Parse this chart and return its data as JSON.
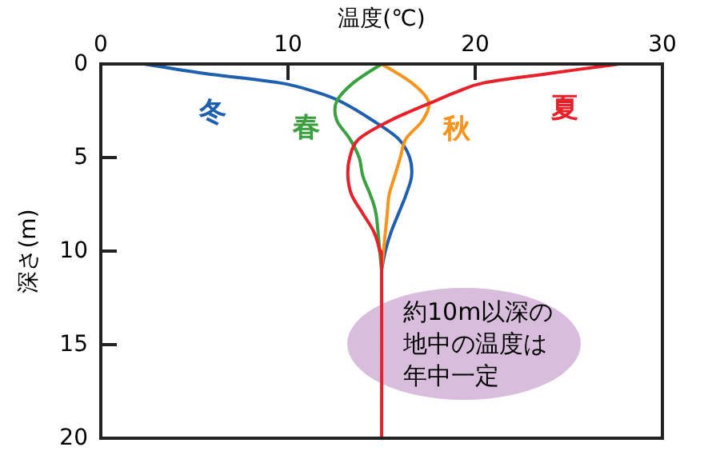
{
  "chart_data": {
    "type": "line",
    "xlabel": "温度(℃)",
    "ylabel": "深さ(m)",
    "xlim": [
      0,
      30
    ],
    "xticks": [
      0,
      10,
      20,
      30
    ],
    "ylim": [
      20,
      0
    ],
    "yticks": [
      0,
      5,
      10,
      15,
      20
    ],
    "grid": false,
    "marker": "none",
    "line_style": "solid",
    "series": [
      {
        "name": "冬",
        "color": "#1f5fb0",
        "x": [
          2.3,
          5.5,
          9.5,
          11.5,
          12.8,
          14.5,
          15.9,
          16.5,
          16.6,
          16.3,
          15.9,
          15.5,
          15.2,
          15.0
        ],
        "values": [
          0,
          0.5,
          1,
          1.5,
          2,
          3,
          4,
          5,
          6,
          7,
          8,
          9,
          10,
          11
        ]
      },
      {
        "name": "春",
        "color": "#3aa040",
        "x": [
          15.0,
          13.5,
          12.6,
          12.6,
          13.3,
          13.8,
          14.0,
          14.4,
          14.7,
          14.9,
          15.0
        ],
        "values": [
          0,
          1,
          2,
          3,
          4,
          5,
          6,
          7,
          8,
          10,
          11
        ]
      },
      {
        "name": "秋",
        "color": "#f7941d",
        "x": [
          15.0,
          16.6,
          17.5,
          17.2,
          16.3,
          16.0,
          15.7,
          15.4,
          15.3,
          15.1,
          15.0
        ],
        "values": [
          0,
          1,
          2,
          3,
          4,
          5,
          6,
          7,
          8,
          10,
          11
        ]
      },
      {
        "name": "夏",
        "color": "#e8202a",
        "x": [
          27.7,
          24.0,
          20.5,
          19.0,
          17.8,
          15.5,
          13.8,
          13.3,
          13.2,
          13.4,
          14.0,
          14.6,
          14.9,
          15.0,
          15.0
        ],
        "values": [
          0,
          0.5,
          1,
          1.5,
          2,
          3,
          4,
          5,
          6,
          7,
          8,
          9,
          10,
          11,
          20
        ]
      }
    ],
    "annotations": [
      "約10m以深の地中の温度は年中一定"
    ]
  }
}
